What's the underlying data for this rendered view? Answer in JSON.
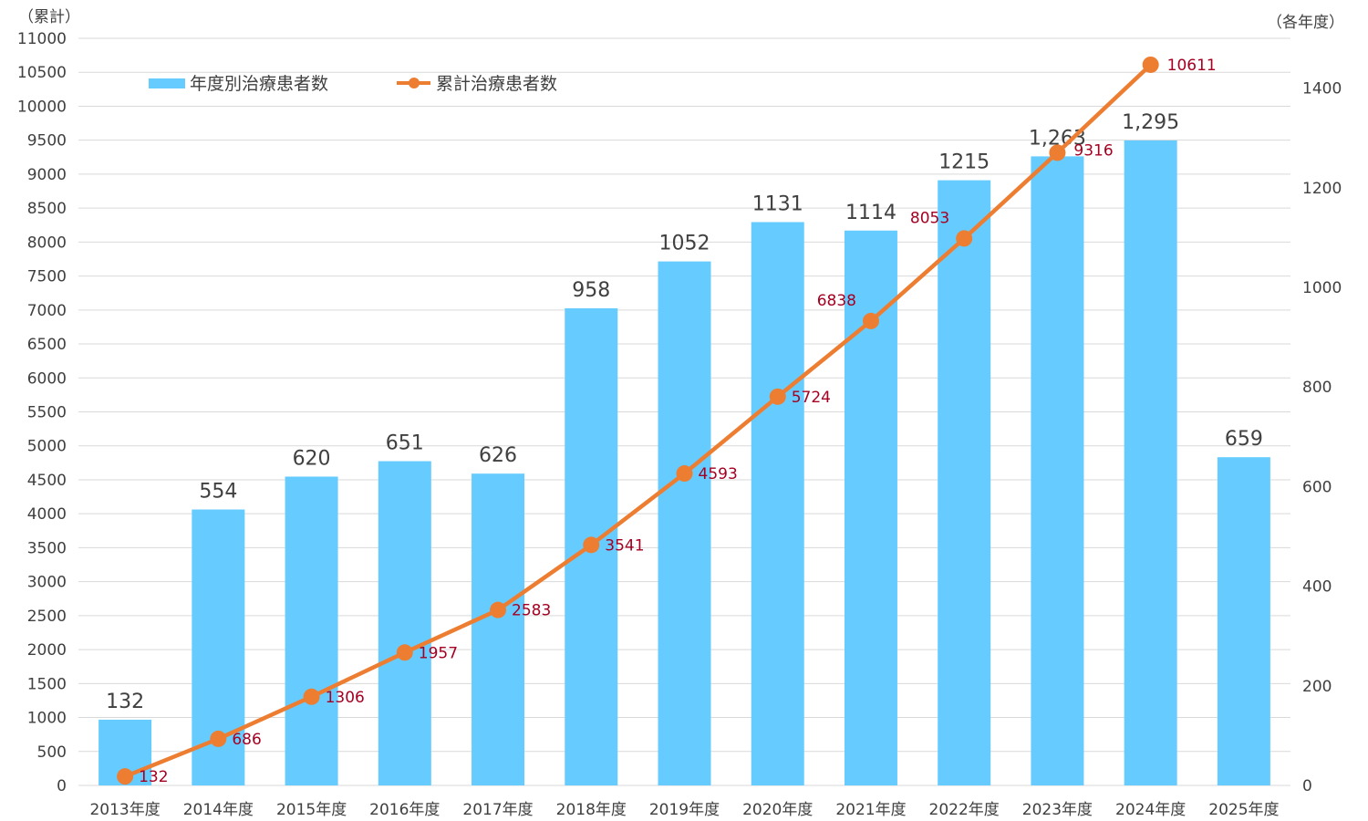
{
  "chart_data": {
    "type": "bar",
    "categories": [
      "2013年度",
      "2014年度",
      "2015年度",
      "2016年度",
      "2017年度",
      "2018年度",
      "2019年度",
      "2020年度",
      "2021年度",
      "2022年度",
      "2023年度",
      "2024年度",
      "2025年度"
    ],
    "series": [
      {
        "name": "年度別治療患者数",
        "chart_type": "bar",
        "axis": "right",
        "color": "#66ccff",
        "values": [
          132,
          554,
          620,
          651,
          626,
          958,
          1052,
          1131,
          1114,
          1215,
          1263,
          1295,
          659
        ],
        "labels": [
          "132",
          "554",
          "620",
          "651",
          "626",
          "958",
          "1052",
          "1131",
          "1114",
          "1215",
          "1,263",
          "1,295",
          "659"
        ]
      },
      {
        "name": "累計治療患者数",
        "chart_type": "line",
        "axis": "left",
        "color": "#ed7d31",
        "label_color": "#a50021",
        "values": [
          132,
          686,
          1306,
          1957,
          2583,
          3541,
          4593,
          5724,
          6838,
          8053,
          9316,
          10611,
          null
        ],
        "labels": [
          "132",
          "686",
          "1306",
          "1957",
          "2583",
          "3541",
          "4593",
          "5724",
          "6838",
          "8053",
          "9316",
          "10611",
          ""
        ]
      }
    ],
    "left_axis": {
      "unit": "（累計）",
      "ylim": [
        0,
        11000
      ],
      "ticks": [
        "0",
        "500",
        "1000",
        "1500",
        "2000",
        "2500",
        "3000",
        "3500",
        "4000",
        "4500",
        "5000",
        "5500",
        "6000",
        "6500",
        "7000",
        "7500",
        "8000",
        "8500",
        "9000",
        "9500",
        "10000",
        "10500",
        "11000"
      ]
    },
    "right_axis": {
      "unit": "（各年度）",
      "ylim": [
        0,
        1500
      ],
      "ticks": [
        "0",
        "200",
        "400",
        "600",
        "800",
        "1000",
        "1200",
        "1400"
      ]
    },
    "grid": true,
    "legend_position": "top-left"
  }
}
